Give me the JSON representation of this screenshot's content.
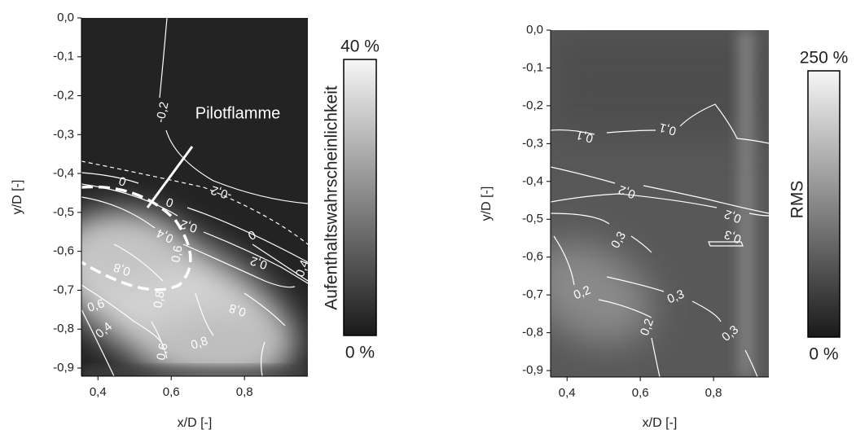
{
  "chart_data": [
    {
      "type": "heatmap",
      "xlabel": "x/D [-]",
      "ylabel": "y/D [-]",
      "xlim": [
        0.355,
        0.973
      ],
      "ylim": [
        -0.921,
        0
      ],
      "xticks": [
        {
          "value": 0.4,
          "label": "0,4"
        },
        {
          "value": 0.6,
          "label": "0,6"
        },
        {
          "value": 0.8,
          "label": "0,8"
        }
      ],
      "yticks": [
        {
          "value": 0,
          "label": "0,0"
        },
        {
          "value": -0.1,
          "label": "-0,1"
        },
        {
          "value": -0.2,
          "label": "-0,2"
        },
        {
          "value": -0.3,
          "label": "-0,3"
        },
        {
          "value": -0.4,
          "label": "-0,4"
        },
        {
          "value": -0.5,
          "label": "-0,5"
        },
        {
          "value": -0.6,
          "label": "-0,6"
        },
        {
          "value": -0.7,
          "label": "-0,7"
        },
        {
          "value": -0.8,
          "label": "-0,8"
        },
        {
          "value": -0.9,
          "label": "-0,9"
        }
      ],
      "colorbar_label": "Aufenthaltswahrscheinlichkeit",
      "clim": [
        0,
        40
      ],
      "cticks": [
        {
          "value": 0,
          "label": "0 %"
        },
        {
          "value": 40,
          "label": "40 %"
        }
      ],
      "annotation": "Pilotflamme",
      "contours": [
        {
          "level": -0.2,
          "label": "-0,2"
        },
        {
          "level": -0.2,
          "label": "-0,2"
        },
        {
          "level": 0,
          "label": "0"
        },
        {
          "level": 0,
          "label": "0"
        },
        {
          "level": 0.2,
          "label": "0,2"
        },
        {
          "level": 0,
          "label": "0"
        },
        {
          "level": 0.4,
          "label": "0,4"
        },
        {
          "level": 0.6,
          "label": "0,6"
        },
        {
          "level": 0.2,
          "label": "0,2"
        },
        {
          "level": 0.8,
          "label": "0,8"
        },
        {
          "level": 0.4,
          "label": "0,4"
        },
        {
          "level": 0.8,
          "label": "0,8"
        },
        {
          "level": 0.8,
          "label": "0,8"
        },
        {
          "level": 0.6,
          "label": "0,6"
        },
        {
          "level": 0.4,
          "label": "0,4"
        },
        {
          "level": 0.8,
          "label": "0,8"
        },
        {
          "level": 0.6,
          "label": "0,6"
        }
      ]
    },
    {
      "type": "heatmap",
      "xlabel": "x/D [-]",
      "ylabel": "y/D [-]",
      "xlim": [
        0.355,
        0.951
      ],
      "ylim": [
        -0.917,
        0
      ],
      "xticks": [
        {
          "value": 0.4,
          "label": "0,4"
        },
        {
          "value": 0.6,
          "label": "0,6"
        },
        {
          "value": 0.8,
          "label": "0,8"
        }
      ],
      "yticks": [
        {
          "value": 0,
          "label": "0,0"
        },
        {
          "value": -0.1,
          "label": "-0,1"
        },
        {
          "value": -0.2,
          "label": "-0,2"
        },
        {
          "value": -0.3,
          "label": "-0,3"
        },
        {
          "value": -0.4,
          "label": "-0,4"
        },
        {
          "value": -0.5,
          "label": "-0,5"
        },
        {
          "value": -0.6,
          "label": "-0,6"
        },
        {
          "value": -0.7,
          "label": "-0,7"
        },
        {
          "value": -0.8,
          "label": "-0,8"
        },
        {
          "value": -0.9,
          "label": "-0,9"
        }
      ],
      "colorbar_label": "RMS",
      "clim": [
        0,
        250
      ],
      "cticks": [
        {
          "value": 0,
          "label": "0 %"
        },
        {
          "value": 250,
          "label": "250 %"
        }
      ],
      "contours": [
        {
          "level": 0.1,
          "label": "0,1"
        },
        {
          "level": 0.1,
          "label": "0,1"
        },
        {
          "level": 0.2,
          "label": "0,2"
        },
        {
          "level": 0.2,
          "label": "0,2"
        },
        {
          "level": 0.3,
          "label": "0,3"
        },
        {
          "level": 0.3,
          "label": "0,3"
        },
        {
          "level": 0.2,
          "label": "0,2"
        },
        {
          "level": 0.3,
          "label": "0,3"
        },
        {
          "level": 0.2,
          "label": "0,2"
        },
        {
          "level": 0.3,
          "label": "0,3"
        }
      ]
    }
  ]
}
